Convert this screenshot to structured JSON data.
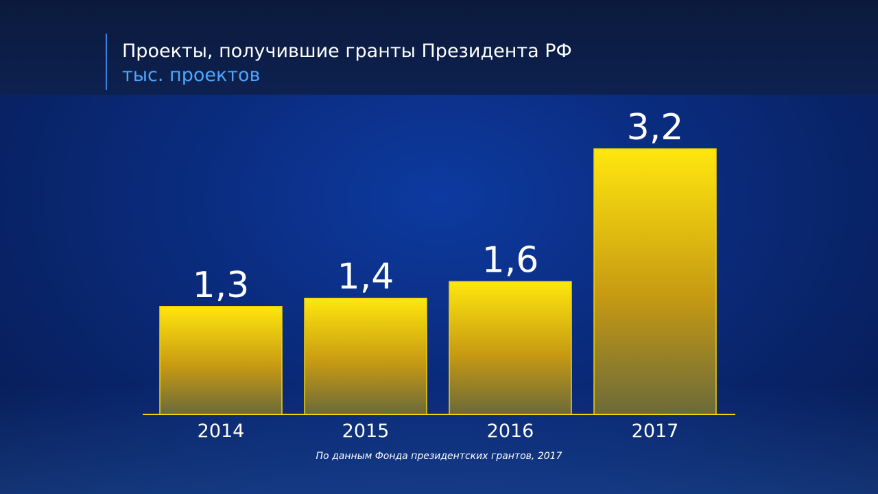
{
  "header": {
    "title": "Проекты, получившие гранты Президента РФ",
    "subtitle": "тыс. проектов"
  },
  "footer": {
    "source": "По данным Фонда президентских грантов, 2017"
  },
  "colors": {
    "bar_top": "#ffe70e",
    "bar_mid": "#c79a12",
    "bar_bottom": "#6b6a3a",
    "baseline": "#f2d30a",
    "label": "#ffffff",
    "accent": "#4fa6ff"
  },
  "chart_data": {
    "type": "bar",
    "title": "Проекты, получившие гранты Президента РФ",
    "ylabel": "тыс. проектов",
    "xlabel": "",
    "categories": [
      "2014",
      "2015",
      "2016",
      "2017"
    ],
    "values": [
      1.3,
      1.4,
      1.6,
      3.2
    ],
    "value_labels": [
      "1,3",
      "1,4",
      "1,6",
      "3,2"
    ],
    "ylim": [
      0,
      3.2
    ],
    "grid": false,
    "legend": "none"
  }
}
